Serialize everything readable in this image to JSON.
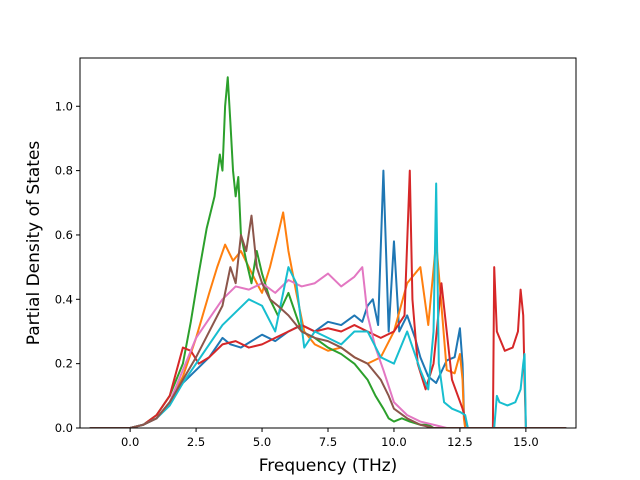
{
  "chart_data": {
    "type": "line",
    "title": "",
    "xlabel": "Frequency (THz)",
    "ylabel": "Partial Density of States",
    "xlim": [
      -1.9,
      16.9
    ],
    "ylim": [
      0.0,
      1.15
    ],
    "xticks": [
      0.0,
      2.5,
      5.0,
      7.5,
      10.0,
      12.5,
      15.0
    ],
    "xtick_labels": [
      "0.0",
      "2.5",
      "5.0",
      "7.5",
      "10.0",
      "12.5",
      "15.0"
    ],
    "yticks": [
      0.0,
      0.2,
      0.4,
      0.6,
      0.8,
      1.0
    ],
    "ytick_labels": [
      "0.0",
      "0.2",
      "0.4",
      "0.6",
      "0.8",
      "1.0"
    ],
    "grid": false,
    "legend": "none",
    "series": [
      {
        "color": "#1f77b4",
        "x": [
          -1.5,
          0.0,
          0.5,
          1.0,
          1.5,
          2.0,
          2.5,
          3.0,
          3.5,
          3.8,
          4.2,
          4.6,
          5.0,
          5.5,
          6.0,
          6.5,
          7.0,
          7.5,
          8.0,
          8.5,
          8.8,
          9.0,
          9.2,
          9.4,
          9.6,
          9.8,
          10.0,
          10.2,
          10.5,
          10.8,
          11.0,
          11.3,
          11.6,
          12.0,
          12.3,
          12.5,
          12.6,
          12.65,
          12.7,
          16.5
        ],
        "y": [
          0.0,
          0.0,
          0.01,
          0.03,
          0.08,
          0.14,
          0.18,
          0.22,
          0.28,
          0.26,
          0.25,
          0.27,
          0.29,
          0.27,
          0.3,
          0.32,
          0.3,
          0.33,
          0.32,
          0.35,
          0.33,
          0.38,
          0.4,
          0.32,
          0.8,
          0.3,
          0.58,
          0.3,
          0.35,
          0.28,
          0.22,
          0.16,
          0.14,
          0.21,
          0.22,
          0.31,
          0.2,
          0.05,
          0.0,
          0.0
        ]
      },
      {
        "color": "#ff7f0e",
        "x": [
          -1.5,
          0.0,
          0.5,
          1.0,
          1.5,
          2.0,
          2.5,
          3.0,
          3.3,
          3.6,
          3.9,
          4.2,
          4.5,
          4.8,
          5.0,
          5.3,
          5.6,
          5.8,
          6.0,
          6.3,
          6.6,
          7.0,
          7.5,
          8.0,
          8.5,
          9.0,
          9.5,
          10.0,
          10.5,
          11.0,
          11.3,
          11.6,
          11.8,
          12.0,
          12.3,
          12.5,
          12.6,
          12.65,
          12.7,
          16.5
        ],
        "y": [
          0.0,
          0.0,
          0.01,
          0.03,
          0.08,
          0.16,
          0.28,
          0.42,
          0.5,
          0.57,
          0.52,
          0.55,
          0.5,
          0.45,
          0.42,
          0.5,
          0.6,
          0.67,
          0.55,
          0.42,
          0.3,
          0.26,
          0.24,
          0.25,
          0.22,
          0.2,
          0.22,
          0.3,
          0.45,
          0.5,
          0.32,
          0.58,
          0.38,
          0.18,
          0.17,
          0.23,
          0.15,
          0.03,
          0.0,
          0.0
        ]
      },
      {
        "color": "#2ca02c",
        "x": [
          -1.5,
          0.0,
          0.5,
          1.0,
          1.5,
          2.0,
          2.3,
          2.6,
          2.9,
          3.2,
          3.4,
          3.5,
          3.6,
          3.7,
          3.8,
          3.9,
          4.0,
          4.1,
          4.2,
          4.4,
          4.6,
          4.8,
          5.0,
          5.3,
          5.6,
          6.0,
          6.5,
          7.0,
          7.5,
          8.0,
          8.5,
          9.0,
          9.3,
          9.6,
          9.8,
          10.0,
          10.3,
          10.6,
          11.0,
          11.3,
          11.5,
          16.5
        ],
        "y": [
          0.0,
          0.0,
          0.01,
          0.04,
          0.1,
          0.2,
          0.33,
          0.48,
          0.62,
          0.72,
          0.85,
          0.8,
          1.0,
          1.09,
          0.95,
          0.8,
          0.72,
          0.78,
          0.6,
          0.52,
          0.45,
          0.55,
          0.48,
          0.4,
          0.35,
          0.42,
          0.3,
          0.28,
          0.25,
          0.23,
          0.2,
          0.15,
          0.1,
          0.06,
          0.03,
          0.02,
          0.03,
          0.02,
          0.01,
          0.01,
          0.0,
          0.0
        ]
      },
      {
        "color": "#d62728",
        "x": [
          -1.5,
          0.0,
          0.5,
          1.0,
          1.5,
          2.0,
          2.3,
          2.6,
          3.0,
          3.5,
          4.0,
          4.5,
          5.0,
          5.5,
          6.0,
          6.5,
          7.0,
          7.5,
          8.0,
          8.5,
          9.0,
          9.5,
          10.0,
          10.4,
          10.6,
          10.7,
          10.9,
          11.2,
          11.5,
          11.8,
          12.2,
          12.6,
          12.8,
          13.0,
          13.5,
          13.75,
          13.8,
          13.9,
          14.2,
          14.5,
          14.7,
          14.8,
          14.9,
          14.95,
          15.0,
          16.5
        ],
        "y": [
          0.0,
          0.0,
          0.01,
          0.04,
          0.1,
          0.25,
          0.24,
          0.2,
          0.22,
          0.26,
          0.27,
          0.25,
          0.26,
          0.28,
          0.3,
          0.32,
          0.3,
          0.31,
          0.3,
          0.32,
          0.3,
          0.28,
          0.3,
          0.35,
          0.8,
          0.4,
          0.2,
          0.12,
          0.2,
          0.45,
          0.15,
          0.06,
          0.0,
          0.0,
          0.0,
          0.0,
          0.5,
          0.3,
          0.24,
          0.25,
          0.3,
          0.43,
          0.35,
          0.15,
          0.0,
          0.0
        ]
      },
      {
        "color": "#e377c2",
        "x": [
          -1.5,
          0.0,
          0.5,
          1.0,
          1.5,
          2.0,
          2.5,
          3.0,
          3.5,
          4.0,
          4.5,
          5.0,
          5.5,
          6.0,
          6.5,
          7.0,
          7.5,
          8.0,
          8.5,
          8.8,
          9.0,
          9.3,
          9.6,
          10.0,
          10.5,
          11.0,
          11.5,
          12.0,
          16.5
        ],
        "y": [
          0.0,
          0.0,
          0.01,
          0.03,
          0.08,
          0.18,
          0.28,
          0.34,
          0.4,
          0.44,
          0.43,
          0.45,
          0.42,
          0.46,
          0.44,
          0.45,
          0.48,
          0.44,
          0.47,
          0.5,
          0.35,
          0.25,
          0.18,
          0.08,
          0.04,
          0.02,
          0.01,
          0.0,
          0.0
        ]
      },
      {
        "color": "#17becf",
        "x": [
          -1.5,
          0.0,
          0.5,
          1.0,
          1.5,
          2.0,
          2.5,
          3.0,
          3.5,
          4.0,
          4.5,
          5.0,
          5.5,
          6.0,
          6.3,
          6.6,
          7.0,
          7.5,
          8.0,
          8.5,
          9.0,
          9.5,
          10.0,
          10.5,
          11.0,
          11.3,
          11.5,
          11.6,
          11.7,
          11.9,
          12.2,
          12.5,
          12.7,
          12.8,
          13.0,
          13.5,
          13.8,
          13.9,
          14.0,
          14.3,
          14.6,
          14.8,
          14.9,
          14.95,
          15.0,
          16.5
        ],
        "y": [
          0.0,
          0.0,
          0.01,
          0.03,
          0.07,
          0.14,
          0.2,
          0.26,
          0.32,
          0.36,
          0.4,
          0.38,
          0.3,
          0.5,
          0.45,
          0.25,
          0.3,
          0.28,
          0.26,
          0.3,
          0.3,
          0.22,
          0.2,
          0.3,
          0.18,
          0.12,
          0.3,
          0.76,
          0.2,
          0.08,
          0.06,
          0.05,
          0.04,
          0.0,
          0.0,
          0.0,
          0.0,
          0.1,
          0.08,
          0.07,
          0.08,
          0.12,
          0.2,
          0.23,
          0.0,
          0.0
        ]
      },
      {
        "color": "#8c564b",
        "x": [
          -1.5,
          0.0,
          0.5,
          1.0,
          1.5,
          2.0,
          2.5,
          3.0,
          3.5,
          3.8,
          4.0,
          4.2,
          4.4,
          4.6,
          4.8,
          5.0,
          5.3,
          5.6,
          6.0,
          6.5,
          7.0,
          7.5,
          8.0,
          8.5,
          9.0,
          9.5,
          9.8,
          10.0,
          10.5,
          11.0,
          11.5,
          16.5
        ],
        "y": [
          0.0,
          0.0,
          0.01,
          0.03,
          0.08,
          0.15,
          0.22,
          0.3,
          0.38,
          0.5,
          0.45,
          0.6,
          0.55,
          0.66,
          0.5,
          0.45,
          0.4,
          0.38,
          0.35,
          0.3,
          0.28,
          0.27,
          0.25,
          0.22,
          0.2,
          0.15,
          0.1,
          0.06,
          0.03,
          0.01,
          0.0,
          0.0
        ]
      }
    ]
  }
}
